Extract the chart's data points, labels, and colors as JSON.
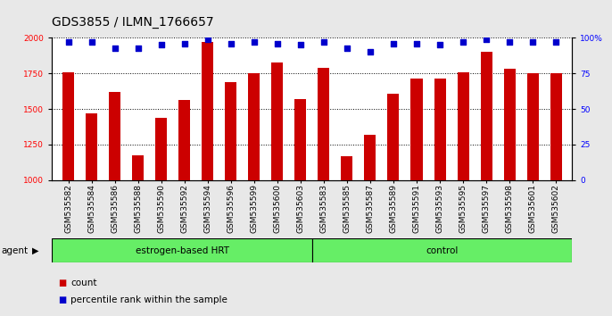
{
  "title": "GDS3855 / ILMN_1766657",
  "samples": [
    "GSM535582",
    "GSM535584",
    "GSM535586",
    "GSM535588",
    "GSM535590",
    "GSM535592",
    "GSM535594",
    "GSM535596",
    "GSM535599",
    "GSM535600",
    "GSM535603",
    "GSM535583",
    "GSM535585",
    "GSM535587",
    "GSM535589",
    "GSM535591",
    "GSM535593",
    "GSM535595",
    "GSM535597",
    "GSM535598",
    "GSM535601",
    "GSM535602"
  ],
  "bar_values": [
    1760,
    1470,
    1620,
    1175,
    1440,
    1565,
    1970,
    1690,
    1750,
    1830,
    1570,
    1790,
    1170,
    1320,
    1610,
    1715,
    1715,
    1760,
    1900,
    1785,
    1750,
    1750
  ],
  "percentile_values": [
    97,
    97,
    93,
    93,
    95,
    96,
    99,
    96,
    97,
    96,
    95,
    97,
    93,
    90,
    96,
    96,
    95,
    97,
    99,
    97,
    97,
    97
  ],
  "bar_color": "#cc0000",
  "percentile_color": "#0000cc",
  "ylim_left": [
    1000,
    2000
  ],
  "ylim_right": [
    0,
    100
  ],
  "yticks_left": [
    1000,
    1250,
    1500,
    1750,
    2000
  ],
  "yticks_right": [
    0,
    25,
    50,
    75,
    100
  ],
  "groups": [
    {
      "label": "estrogen-based HRT",
      "start": 0,
      "end": 11,
      "color": "#66ee66"
    },
    {
      "label": "control",
      "start": 11,
      "end": 22,
      "color": "#66ee66"
    }
  ],
  "group_row_label": "agent",
  "legend_count_label": "count",
  "legend_pct_label": "percentile rank within the sample",
  "background_color": "#e8e8e8",
  "plot_bg_color": "#ffffff",
  "title_fontsize": 10,
  "tick_fontsize": 6.5,
  "label_fontsize": 7.5,
  "grid_color": "#000000",
  "n_hrt": 11,
  "n_control": 11
}
